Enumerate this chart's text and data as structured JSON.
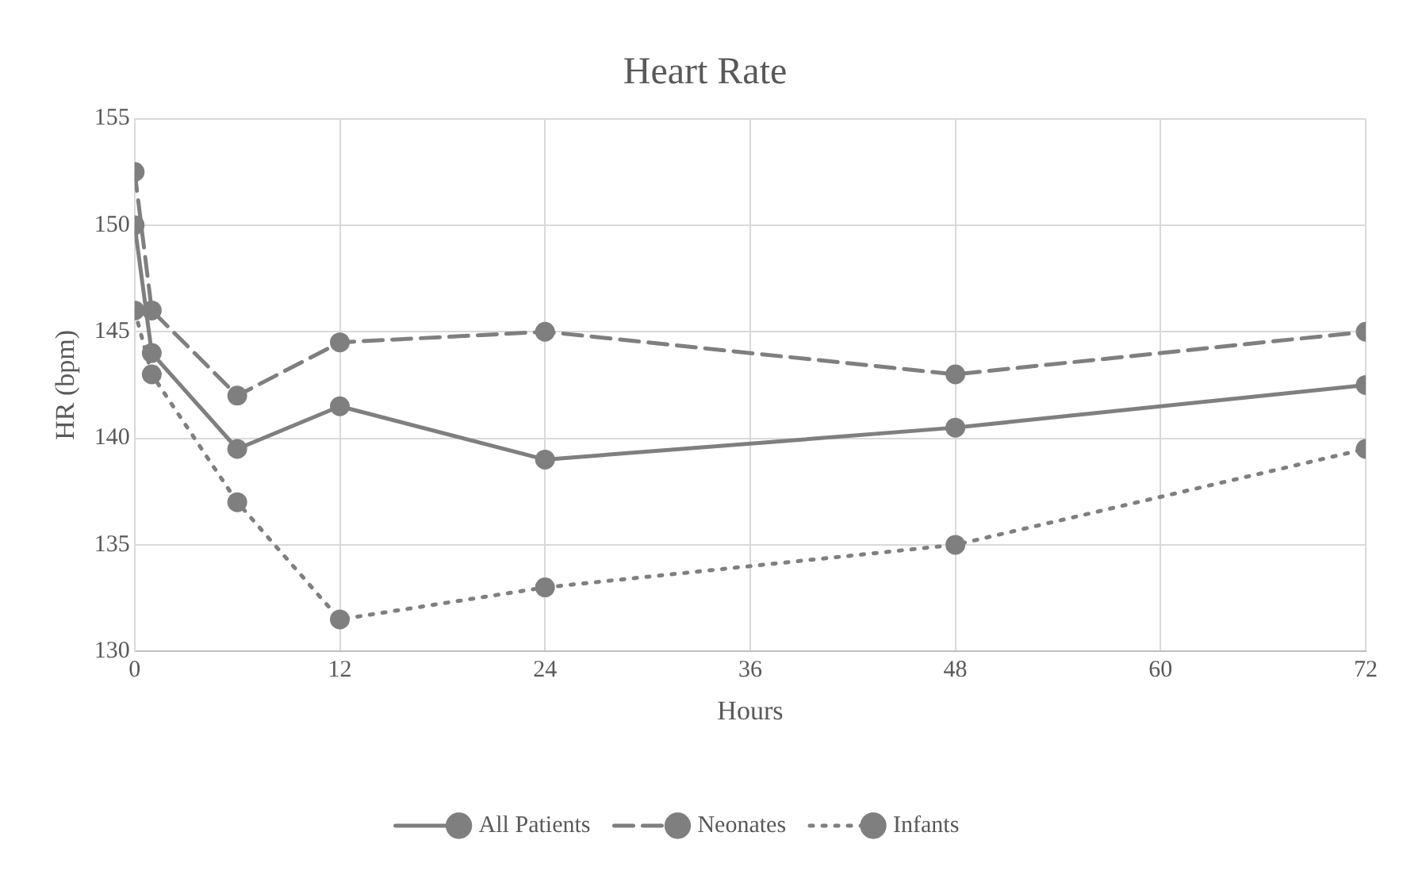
{
  "chart_data": {
    "type": "line",
    "title": "Heart Rate",
    "xlabel": "Hours",
    "ylabel": "HR (bpm)",
    "x": [
      0,
      1,
      6,
      12,
      24,
      48,
      72
    ],
    "series": [
      {
        "name": "All Patients",
        "color": "#7f7f7f",
        "line_style": "solid",
        "values": [
          150,
          144,
          139.5,
          141.5,
          139,
          140.5,
          142.5
        ]
      },
      {
        "name": "Neonates",
        "color": "#7f7f7f",
        "line_style": "dashed",
        "values": [
          152.5,
          146,
          142,
          144.5,
          145,
          143,
          145
        ]
      },
      {
        "name": "Infants",
        "color": "#7f7f7f",
        "line_style": "dotted",
        "values": [
          146,
          143,
          137,
          131.5,
          133,
          135,
          139.5
        ]
      }
    ],
    "xlim": [
      0,
      72
    ],
    "xticks": [
      0,
      12,
      24,
      36,
      48,
      60,
      72
    ],
    "ylim": [
      130,
      155
    ],
    "yticks": [
      130,
      135,
      140,
      145,
      150,
      155
    ],
    "grid": true,
    "legend": "bottom",
    "marker": "circle"
  }
}
